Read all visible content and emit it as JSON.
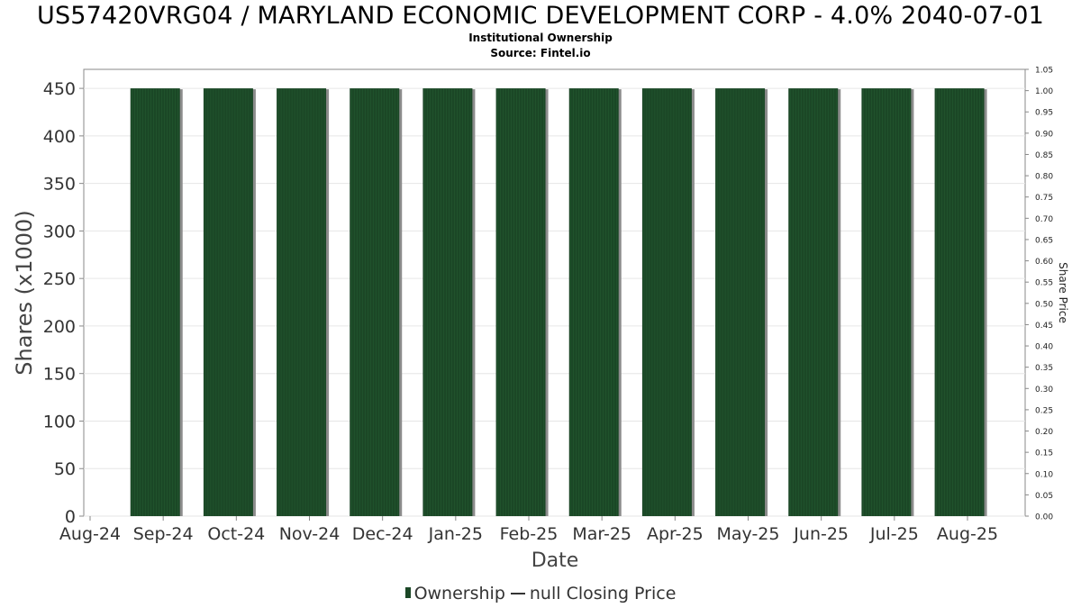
{
  "title": "US57420VRG04 / MARYLAND ECONOMIC DEVELOPMENT CORP - 4.0% 2040-07-01",
  "subtitle": "Institutional Ownership",
  "source": "Source: Fintel.io",
  "legend": {
    "ownership": "Ownership",
    "price": "null Closing Price"
  },
  "colors": {
    "bar": "#1b4726",
    "bar_shadow": "#8c8c8c",
    "grid": "#e6e6e6",
    "axis": "#888888"
  },
  "chart_data": {
    "type": "bar",
    "xlabel": "Date",
    "ylabel": "Shares (x1000)",
    "y2label": "Share Price",
    "categories": [
      "Aug-24",
      "Sep-24",
      "Oct-24",
      "Nov-24",
      "Dec-24",
      "Jan-25",
      "Feb-25",
      "Mar-25",
      "Apr-25",
      "May-25",
      "Jun-25",
      "Jul-25",
      "Aug-25"
    ],
    "series": [
      {
        "name": "Ownership",
        "values": [
          null,
          450,
          450,
          450,
          450,
          450,
          450,
          450,
          450,
          450,
          450,
          450,
          450
        ]
      }
    ],
    "ylim": [
      0,
      470
    ],
    "yticks": [
      0,
      50,
      100,
      150,
      200,
      250,
      300,
      350,
      400,
      450
    ],
    "y2lim": [
      0,
      1.05
    ],
    "y2ticks": [
      "0.00",
      "0.05",
      "0.10",
      "0.15",
      "0.20",
      "0.25",
      "0.30",
      "0.35",
      "0.40",
      "0.45",
      "0.50",
      "0.55",
      "0.60",
      "0.65",
      "0.70",
      "0.75",
      "0.80",
      "0.85",
      "0.90",
      "0.95",
      "1.00",
      "1.05"
    ],
    "grid": true,
    "legend_position": "bottom"
  }
}
